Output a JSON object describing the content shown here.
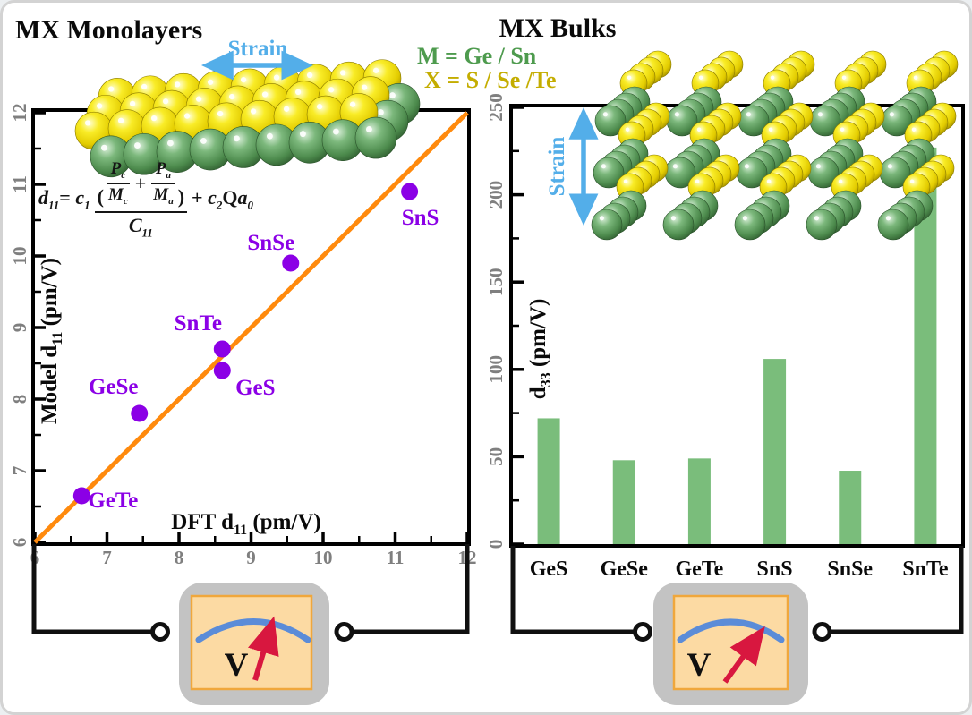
{
  "left_panel": {
    "title": "MX Monolayers",
    "strain_label": "Strain",
    "xlabel": {
      "pre": "DFT d",
      "sub": "11",
      "post": " (pm/V)"
    },
    "ylabel": {
      "pre": "Model d",
      "sub": "11",
      "post": " (pm/V)"
    },
    "voltmeter_label": "V"
  },
  "right_panel": {
    "title": "MX Bulks",
    "strain_label": "Strain",
    "ylabel": {
      "pre": "d",
      "sub": "33",
      "post": " (pm/V)"
    },
    "voltmeter_label": "V"
  },
  "legend": {
    "m_line": "M = Ge / Sn",
    "x_line": "X = S / Se /Te"
  },
  "formula": {
    "lhs_base": "d",
    "lhs_sub": "11",
    "eq": "= ",
    "c1": "c",
    "c1_sub": "1",
    "open": "(",
    "close": ")",
    "plus": "+",
    "f1_num": "P",
    "f1_num_sub": "c",
    "f1_den": "M",
    "f1_den_sub": "c",
    "f2_num": "P",
    "f2_num_sub": "a",
    "f2_den": "M",
    "f2_den_sub": "a",
    "den_base": "C",
    "den_sub": "11",
    "tail_plus": "+ ",
    "tail_c": "c",
    "tail_c_sub": "2",
    "tail_Q": "Q",
    "tail_a": "a",
    "tail_a_sub": "0"
  },
  "colors": {
    "purple": "#8B00E6",
    "orange": "#FF8A0D",
    "bar_green": "#7ABD7B",
    "strain_blue": "#53AEE9",
    "legend_green": "#4E9B4E",
    "legend_yellow": "#C4AD00",
    "tick_gray": "#7F7F7F",
    "needle_red": "#D8173F",
    "meter_arc_blue": "#5B8CD8"
  },
  "chart_data": [
    {
      "type": "scatter",
      "panel": "MX Monolayers",
      "xlabel": "DFT d11 (pm/V)",
      "ylabel": "Model d11 (pm/V)",
      "xlim": [
        6,
        12
      ],
      "ylim": [
        6,
        12
      ],
      "xticks": [
        6,
        7,
        8,
        9,
        10,
        11,
        12
      ],
      "yticks": [
        6,
        7,
        8,
        9,
        10,
        11,
        12
      ],
      "minor_tick_step": 0.5,
      "identity_line": {
        "from": [
          6,
          6
        ],
        "to": [
          12,
          12
        ]
      },
      "points": [
        {
          "label": "GeTe",
          "x": 6.65,
          "y": 6.65
        },
        {
          "label": "GeSe",
          "x": 7.45,
          "y": 7.8
        },
        {
          "label": "SnTe",
          "x": 8.6,
          "y": 8.7
        },
        {
          "label": "GeS",
          "x": 8.6,
          "y": 8.4
        },
        {
          "label": "SnSe",
          "x": 9.55,
          "y": 9.9
        },
        {
          "label": "SnS",
          "x": 11.2,
          "y": 10.9
        }
      ]
    },
    {
      "type": "bar",
      "panel": "MX Bulks",
      "ylabel": "d33 (pm/V)",
      "categories": [
        "GeS",
        "GeSe",
        "GeTe",
        "SnS",
        "SnSe",
        "SnTe"
      ],
      "values": [
        72,
        48,
        49,
        106,
        42,
        227
      ],
      "ylim": [
        0,
        250
      ],
      "yticks": [
        0,
        50,
        100,
        150,
        200,
        250
      ],
      "minor_tick_step": 25
    }
  ]
}
